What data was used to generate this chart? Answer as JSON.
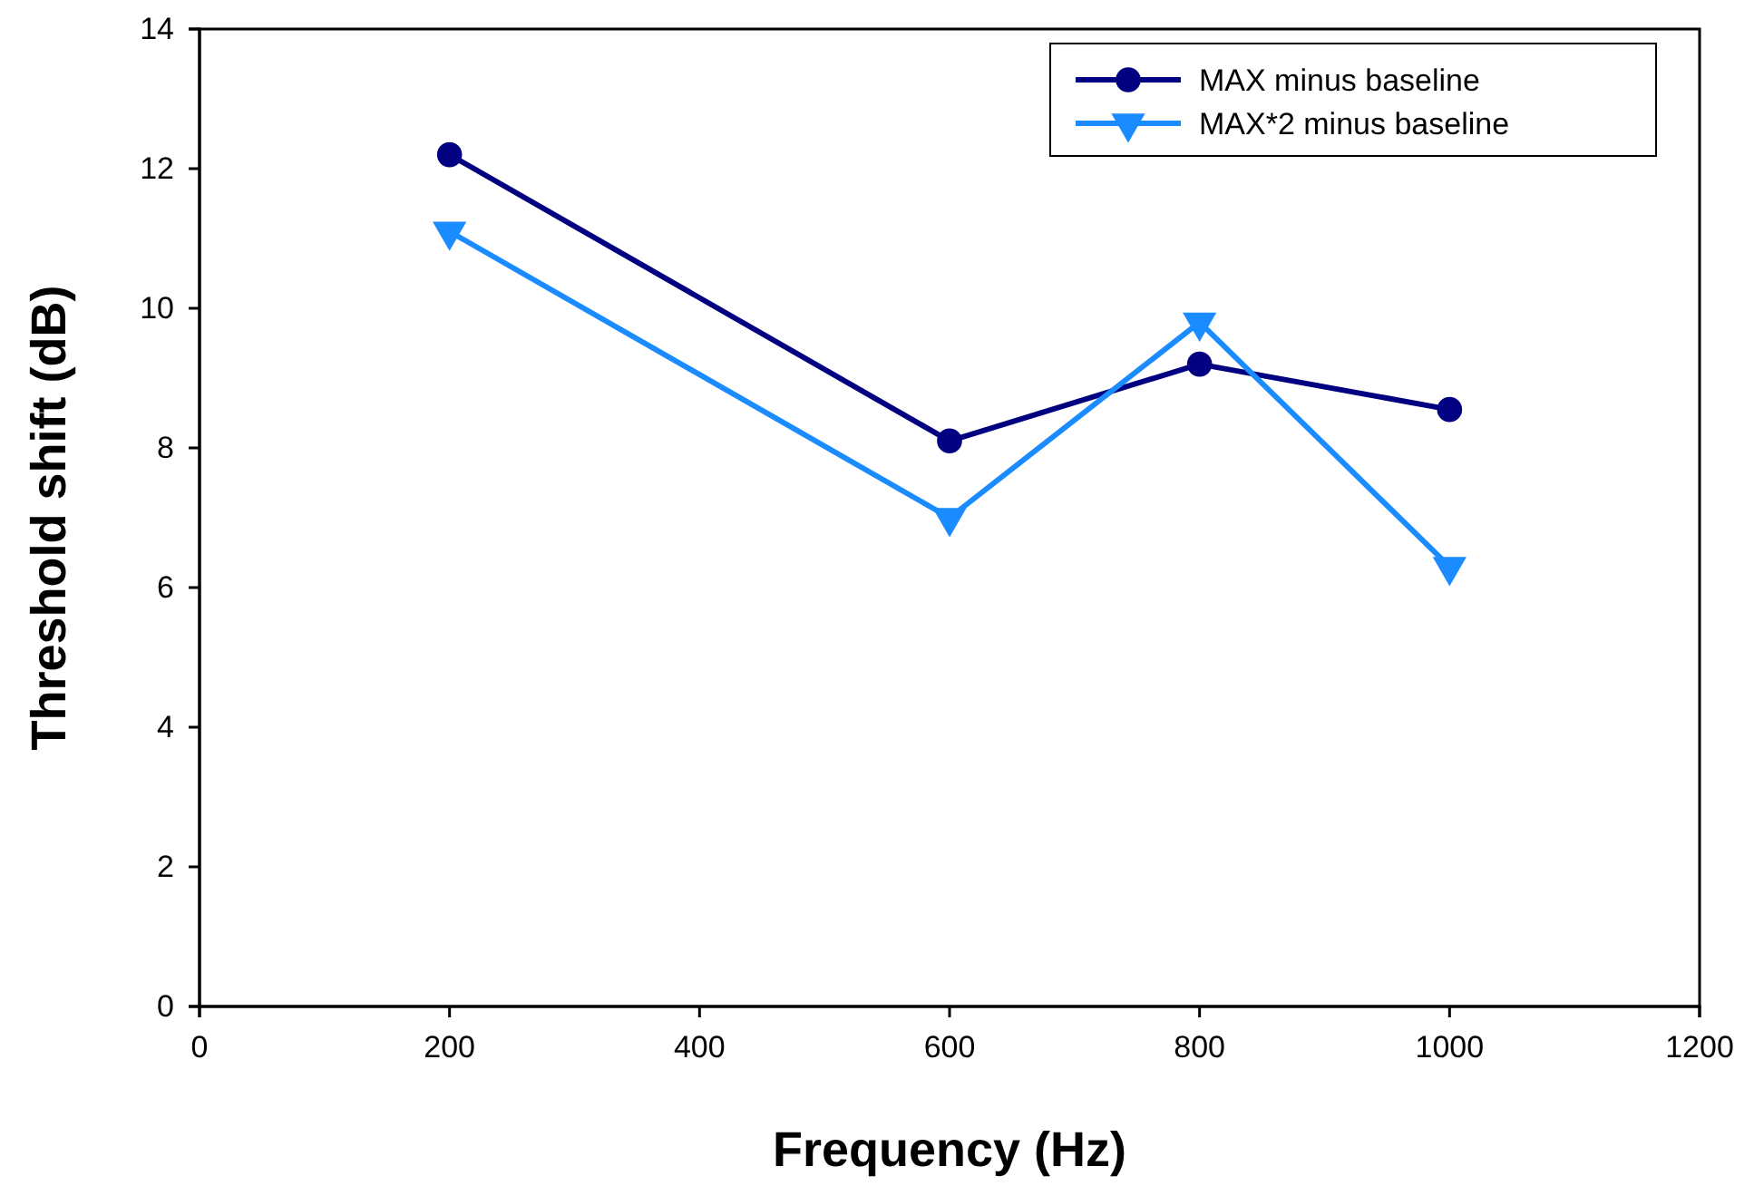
{
  "chart_data": {
    "type": "line",
    "xlabel": "Frequency (Hz)",
    "ylabel": "Threshold shift (dB)",
    "x": [
      200,
      600,
      800,
      1000
    ],
    "series": [
      {
        "name": "MAX minus baseline",
        "color": "#000080",
        "marker": "circle",
        "values": [
          12.2,
          8.1,
          9.2,
          8.55
        ]
      },
      {
        "name": "MAX*2 minus baseline",
        "color": "#1a8cff",
        "marker": "triangle",
        "values": [
          11.1,
          7.0,
          9.8,
          6.3
        ]
      }
    ],
    "xlim": [
      0,
      1200
    ],
    "xticks": [
      0,
      200,
      400,
      600,
      800,
      1000,
      1200
    ],
    "ylim": [
      0,
      14
    ],
    "yticks": [
      0,
      2,
      4,
      6,
      8,
      10,
      12,
      14
    ],
    "grid": false,
    "legend": "top right",
    "line_style": "solid"
  }
}
